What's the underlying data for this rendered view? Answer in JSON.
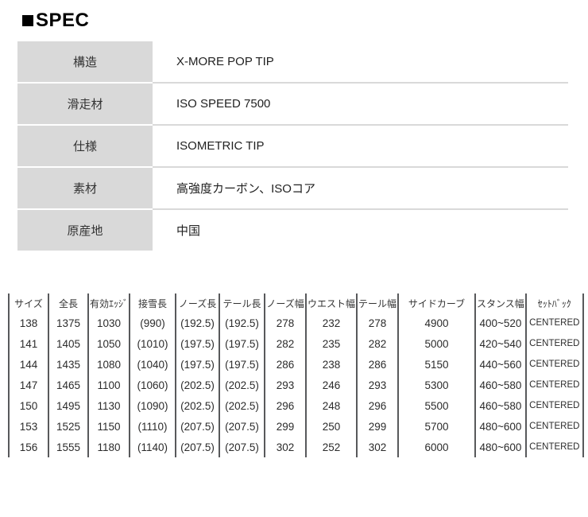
{
  "title": {
    "text": "SPEC"
  },
  "spec_table": {
    "rows": [
      {
        "label": "構造",
        "value": "X-MORE POP TIP"
      },
      {
        "label": "滑走材",
        "value": "ISO SPEED 7500"
      },
      {
        "label": "仕様",
        "value": "ISOMETRIC TIP"
      },
      {
        "label": "素材",
        "value": "高強度カーボン、ISOコア"
      },
      {
        "label": "原産地",
        "value": "中国"
      }
    ]
  },
  "size_table": {
    "columns": [
      "サイズ",
      "全長",
      "有効ｴｯｼﾞ",
      "接雪長",
      "ノーズ長",
      "テール長",
      "ノーズ幅",
      "ウエスト幅",
      "テール幅",
      "サイドカーブ",
      "スタンス幅",
      "ｾｯﾄﾊﾞｯｸ"
    ],
    "rows": [
      [
        "138",
        "1375",
        "1030",
        "(990)",
        "(192.5)",
        "(192.5)",
        "278",
        "232",
        "278",
        "4900",
        "400~520",
        "CENTERED"
      ],
      [
        "141",
        "1405",
        "1050",
        "(1010)",
        "(197.5)",
        "(197.5)",
        "282",
        "235",
        "282",
        "5000",
        "420~540",
        "CENTERED"
      ],
      [
        "144",
        "1435",
        "1080",
        "(1040)",
        "(197.5)",
        "(197.5)",
        "286",
        "238",
        "286",
        "5150",
        "440~560",
        "CENTERED"
      ],
      [
        "147",
        "1465",
        "1100",
        "(1060)",
        "(202.5)",
        "(202.5)",
        "293",
        "246",
        "293",
        "5300",
        "460~580",
        "CENTERED"
      ],
      [
        "150",
        "1495",
        "1130",
        "(1090)",
        "(202.5)",
        "(202.5)",
        "296",
        "248",
        "296",
        "5500",
        "460~580",
        "CENTERED"
      ],
      [
        "153",
        "1525",
        "1150",
        "(1110)",
        "(207.5)",
        "(207.5)",
        "299",
        "250",
        "299",
        "5700",
        "480~600",
        "CENTERED"
      ],
      [
        "156",
        "1555",
        "1180",
        "(1140)",
        "(207.5)",
        "(207.5)",
        "302",
        "252",
        "302",
        "6000",
        "480~600",
        "CENTERED"
      ]
    ]
  },
  "colors": {
    "label_cell_bg": "#d9d9d9",
    "spec_row_divider": "#d9d9d9",
    "size_grid_line": "#58595b",
    "text": "#2b2b2b",
    "title_text": "#000000"
  }
}
